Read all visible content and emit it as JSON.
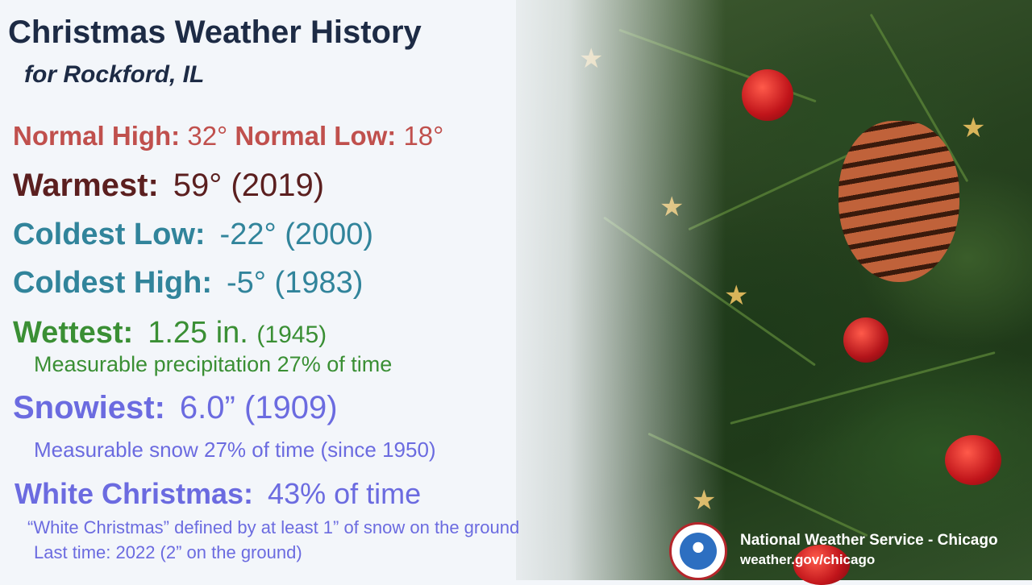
{
  "header": {
    "title": "Christmas Weather History",
    "subtitle": "for Rockford, IL"
  },
  "normals": {
    "high_label": "Normal High:",
    "high_value": "32°",
    "low_label": "Normal Low:",
    "low_value": "18°"
  },
  "records": {
    "warmest": {
      "label": "Warmest:",
      "value": "59° (2019)"
    },
    "coldest_low": {
      "label": "Coldest Low:",
      "value": "-22° (2000)"
    },
    "coldest_high": {
      "label": "Coldest High:",
      "value": "-5° (1983)"
    },
    "wettest": {
      "label": "Wettest:",
      "value": "1.25 in.",
      "year": "(1945)",
      "note": "Measurable precipitation 27% of time"
    },
    "snowiest": {
      "label": "Snowiest:",
      "value": "6.0” (1909)",
      "note": "Measurable snow 27% of time (since 1950)"
    },
    "white_christmas": {
      "label": "White Christmas:",
      "value": "43% of time",
      "note1": "“White Christmas” defined by at least 1” of snow on the ground",
      "note2": "Last time: 2022 (2” on the ground)"
    }
  },
  "footer": {
    "org": "National Weather Service - Chicago",
    "url": "weather.gov/chicago"
  },
  "colors": {
    "title": "#1d2b45",
    "normals": "#c0504d",
    "warmest": "#5b1f1f",
    "coldest": "#31849b",
    "wettest": "#3a8f34",
    "snow": "#6b6be0"
  },
  "icons": {
    "logo": "nws-logo-icon"
  }
}
